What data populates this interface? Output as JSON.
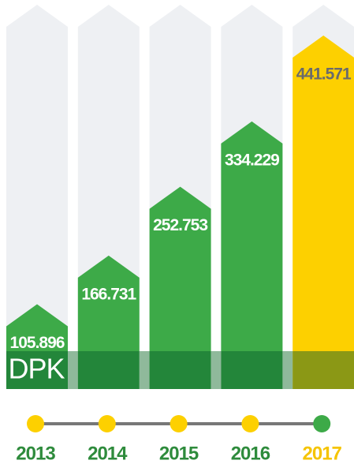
{
  "chart_data": {
    "type": "bar",
    "annotation": "DPK",
    "categories": [
      "2013",
      "2014",
      "2015",
      "2016",
      "2017"
    ],
    "values": [
      105896,
      166731,
      252753,
      334229,
      441571
    ],
    "value_labels": [
      "105.896",
      "166.731",
      "252.753",
      "334.229",
      "441.571"
    ],
    "colors": [
      "#3daa48",
      "#3daa48",
      "#3daa48",
      "#3daa48",
      "#fdd000"
    ],
    "marker_colors": [
      "#fdd000",
      "#fdd000",
      "#fdd000",
      "#fdd000",
      "#3daa48"
    ]
  }
}
